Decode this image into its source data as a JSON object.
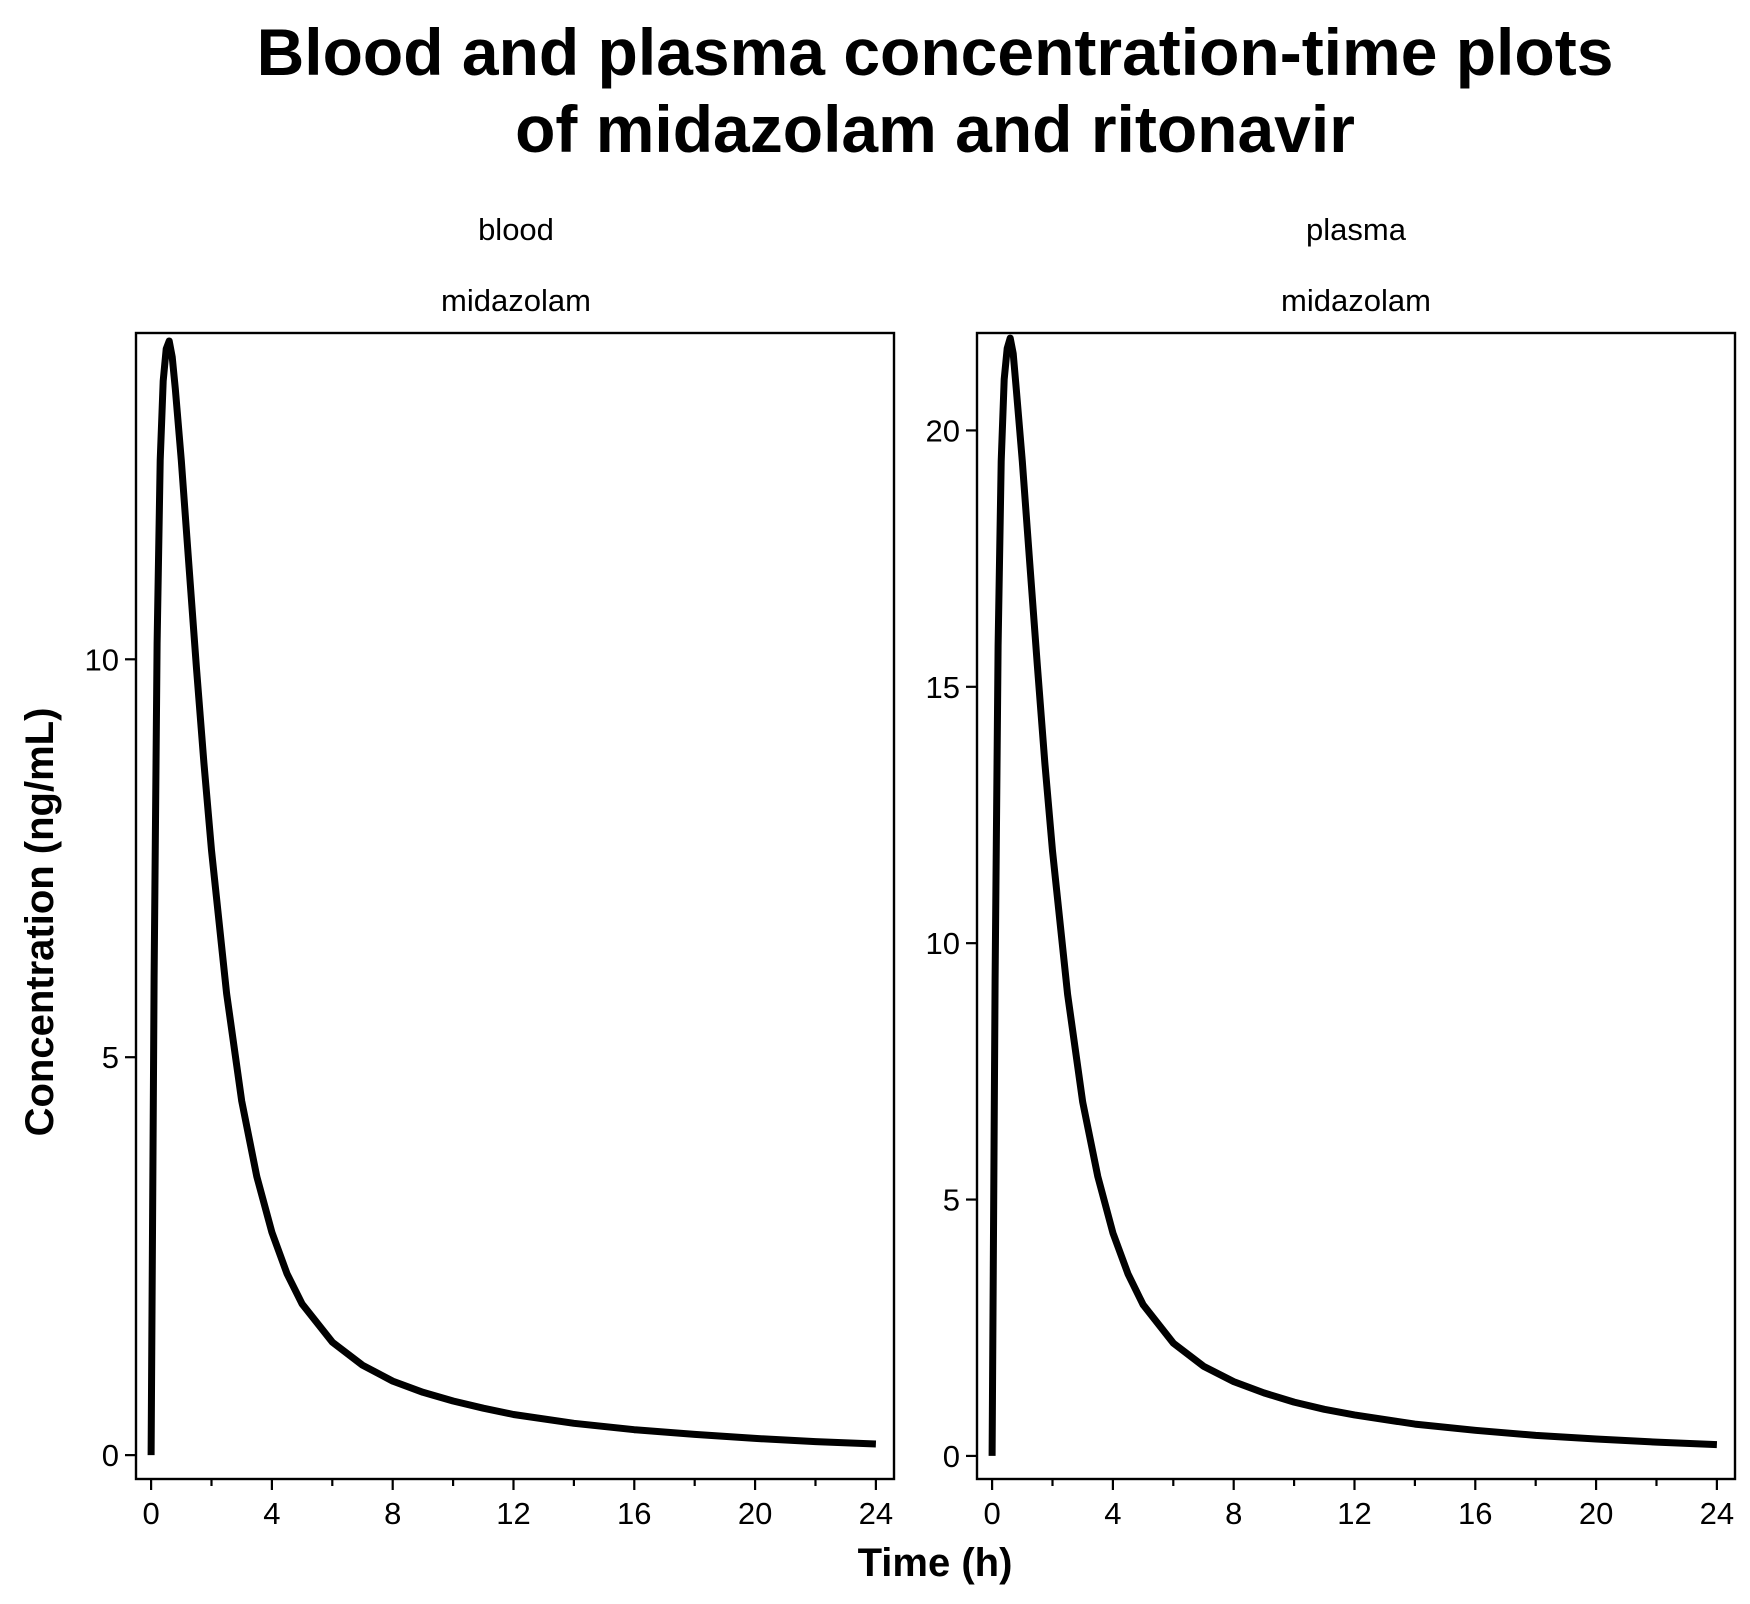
{
  "chart_data": {
    "type": "line",
    "title_lines": [
      "Blood and plasma concentration-time plots",
      "of midazolam and ritonavir"
    ],
    "xlabel": "Time (h)",
    "ylabel": "Concentration (ng/mL)",
    "grid": false,
    "legend": "none",
    "panels": [
      {
        "strip_top": "blood",
        "strip_bottom": "midazolam",
        "xlim": [
          -0.5,
          24.6
        ],
        "ylim": [
          -0.3,
          14.1
        ],
        "xticks": [
          0,
          4,
          8,
          12,
          16,
          20,
          24
        ],
        "xminor": [
          2,
          6,
          10,
          14,
          18,
          22
        ],
        "yticks": [
          0,
          5,
          10
        ],
        "series": [
          {
            "x": [
              0,
              0.1,
              0.2,
              0.3,
              0.4,
              0.5,
              0.6,
              0.7,
              0.8,
              1.0,
              1.25,
              1.5,
              1.75,
              2.0,
              2.5,
              3.0,
              3.5,
              4.0,
              4.5,
              5.0,
              6.0,
              7.0,
              8.0,
              9.0,
              10.0,
              11.0,
              12.0,
              14.0,
              16.0,
              18.0,
              20.0,
              22.0,
              24.0
            ],
            "y": [
              0,
              6.0,
              10.2,
              12.5,
              13.5,
              13.9,
              14.0,
              13.8,
              13.4,
              12.5,
              11.2,
              9.9,
              8.7,
              7.6,
              5.8,
              4.45,
              3.5,
              2.8,
              2.28,
              1.9,
              1.42,
              1.13,
              0.93,
              0.79,
              0.68,
              0.59,
              0.51,
              0.4,
              0.32,
              0.26,
              0.21,
              0.17,
              0.14
            ]
          }
        ]
      },
      {
        "strip_top": "plasma",
        "strip_bottom": "midazolam",
        "xlim": [
          -0.5,
          24.6
        ],
        "ylim": [
          -0.45,
          21.9
        ],
        "xticks": [
          0,
          4,
          8,
          12,
          16,
          20,
          24
        ],
        "xminor": [
          2,
          6,
          10,
          14,
          18,
          22
        ],
        "yticks": [
          0,
          5,
          10,
          15,
          20
        ],
        "series": [
          {
            "x": [
              0,
              0.1,
              0.2,
              0.3,
              0.4,
              0.5,
              0.6,
              0.7,
              0.8,
              1.0,
              1.25,
              1.5,
              1.75,
              2.0,
              2.5,
              3.0,
              3.5,
              4.0,
              4.5,
              5.0,
              6.0,
              7.0,
              8.0,
              9.0,
              10.0,
              11.0,
              12.0,
              14.0,
              16.0,
              18.0,
              20.0,
              22.0,
              24.0
            ],
            "y": [
              0,
              9.3,
              15.8,
              19.4,
              21.0,
              21.6,
              21.8,
              21.5,
              20.8,
              19.4,
              17.4,
              15.4,
              13.5,
              11.8,
              9.0,
              6.9,
              5.45,
              4.35,
              3.55,
              2.95,
              2.2,
              1.75,
              1.45,
              1.23,
              1.05,
              0.91,
              0.8,
              0.62,
              0.5,
              0.4,
              0.33,
              0.27,
              0.22
            ]
          }
        ]
      }
    ]
  }
}
